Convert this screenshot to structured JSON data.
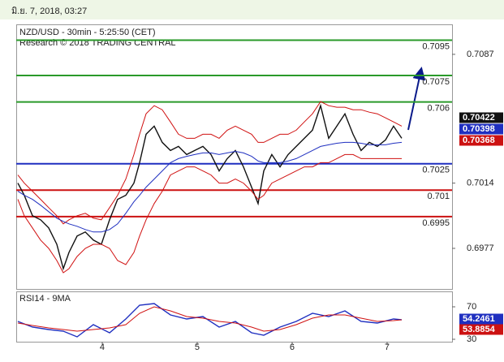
{
  "header": "มิ.ย. 7, 2018, 03:27",
  "chart_data": [
    {
      "type": "line",
      "title": "NZD/USD - 30min - 5:25:50 (CET)",
      "subtitle": "Research © 2018 TRADING CENTRAL",
      "x": [
        3.111,
        3.179,
        3.265,
        3.35,
        3.436,
        3.521,
        3.59,
        3.65,
        3.735,
        3.821,
        3.906,
        3.991,
        4.077,
        4.162,
        4.248,
        4.333,
        4.393,
        4.462,
        4.547,
        4.632,
        4.718,
        4.803,
        4.889,
        4.974,
        5.06,
        5.145,
        5.231,
        5.316,
        5.402,
        5.487,
        5.573,
        5.641,
        5.701,
        5.786,
        5.872,
        5.957,
        6.043,
        6.128,
        6.214,
        6.299,
        6.385,
        6.47,
        6.556,
        6.641,
        6.726,
        6.812,
        6.897,
        6.983,
        7.068,
        7.154
      ],
      "xlim": [
        3.094,
        7.684
      ],
      "ylim": [
        0.6954,
        0.7104
      ],
      "yticks": [
        0.6977,
        0.7014,
        0.7087
      ],
      "series": [
        {
          "color": "#111111",
          "values": [
            0.7014,
            0.70071,
            0.69955,
            0.69932,
            0.69886,
            0.69793,
            0.69655,
            0.69747,
            0.6984,
            0.69863,
            0.69817,
            0.69793,
            0.69932,
            0.70048,
            0.70071,
            0.7014,
            0.70256,
            0.70417,
            0.70463,
            0.70371,
            0.70325,
            0.70348,
            0.70302,
            0.70325,
            0.70348,
            0.70302,
            0.70209,
            0.70279,
            0.70325,
            0.70232,
            0.70117,
            0.70024,
            0.70209,
            0.70302,
            0.70232,
            0.70302,
            0.70348,
            0.70394,
            0.7044,
            0.70579,
            0.70394,
            0.70463,
            0.70533,
            0.70417,
            0.70325,
            0.70371,
            0.70348,
            0.70385,
            0.70463,
            0.70394
          ]
        },
        {
          "color": "#d01010",
          "values": [
            0.70186,
            0.7014,
            0.70094,
            0.70048,
            0.70001,
            0.69955,
            0.69909,
            0.69932,
            0.69955,
            0.69969,
            0.69941,
            0.69932,
            0.70001,
            0.70071,
            0.70163,
            0.70302,
            0.70417,
            0.70533,
            0.70579,
            0.70556,
            0.70487,
            0.70417,
            0.70394,
            0.70394,
            0.70417,
            0.70417,
            0.70394,
            0.7044,
            0.70463,
            0.7044,
            0.70417,
            0.70371,
            0.70371,
            0.70394,
            0.70417,
            0.70417,
            0.7044,
            0.70487,
            0.70533,
            0.70602,
            0.70579,
            0.7057,
            0.7057,
            0.70556,
            0.70556,
            0.70542,
            0.70533,
            0.7051,
            0.70487,
            0.70463
          ]
        },
        {
          "color": "#d01010",
          "values": [
            0.70048,
            0.69955,
            0.69886,
            0.69817,
            0.6977,
            0.69701,
            0.69632,
            0.69655,
            0.69724,
            0.6977,
            0.69793,
            0.69793,
            0.6977,
            0.69701,
            0.69678,
            0.69747,
            0.6984,
            0.69932,
            0.70024,
            0.70094,
            0.70186,
            0.70209,
            0.70232,
            0.70232,
            0.70209,
            0.70186,
            0.7014,
            0.7014,
            0.70163,
            0.7014,
            0.70094,
            0.70048,
            0.70071,
            0.7014,
            0.70163,
            0.70186,
            0.70209,
            0.70232,
            0.70232,
            0.70256,
            0.70256,
            0.70279,
            0.70302,
            0.70302,
            0.70279,
            0.70279,
            0.70279,
            0.70279,
            0.70279,
            0.70279
          ]
        },
        {
          "color": "#1f2fc0",
          "values": [
            0.70094,
            0.70071,
            0.70048,
            0.70015,
            0.69978,
            0.69941,
            0.69923,
            0.69909,
            0.69895,
            0.69877,
            0.69863,
            0.69863,
            0.69877,
            0.69909,
            0.69969,
            0.70034,
            0.70071,
            0.70117,
            0.70163,
            0.70209,
            0.70256,
            0.70279,
            0.70292,
            0.70302,
            0.70311,
            0.70311,
            0.70302,
            0.70311,
            0.7032,
            0.70311,
            0.70292,
            0.70265,
            0.70256,
            0.70256,
            0.70256,
            0.70265,
            0.70279,
            0.70302,
            0.70325,
            0.70348,
            0.70357,
            0.70366,
            0.70371,
            0.70371,
            0.70366,
            0.70357,
            0.70357,
            0.70357,
            0.70366,
            0.70371
          ]
        }
      ],
      "levels": [
        {
          "value": 0.7095,
          "color": "#2a9a2a"
        },
        {
          "value": 0.7075,
          "color": "#2a9a2a"
        },
        {
          "value": 0.706,
          "color": "#2a9a2a"
        },
        {
          "value": 0.7025,
          "color": "#1f2fc0"
        },
        {
          "value": 0.701,
          "color": "#cc1111"
        },
        {
          "value": 0.6995,
          "color": "#cc1111"
        }
      ],
      "price_tags": [
        {
          "value": 0.70422,
          "color": "#111111"
        },
        {
          "value": 0.70398,
          "color": "#1f2fc0"
        },
        {
          "value": 0.70368,
          "color": "#cc1111"
        }
      ]
    },
    {
      "type": "line",
      "title": "RSI14 - 9MA",
      "x": [
        3.111,
        3.265,
        3.436,
        3.59,
        3.735,
        3.906,
        4.077,
        4.248,
        4.393,
        4.547,
        4.718,
        4.889,
        5.06,
        5.231,
        5.402,
        5.573,
        5.701,
        5.872,
        6.043,
        6.214,
        6.385,
        6.556,
        6.726,
        6.897,
        7.068,
        7.154
      ],
      "xlim": [
        3.094,
        7.684
      ],
      "xticks": [
        4,
        5,
        6,
        7
      ],
      "ylim": [
        27,
        88
      ],
      "yticks": [
        30,
        70
      ],
      "series": [
        {
          "color": "#1f2fc0",
          "values": [
            52,
            45,
            42,
            40,
            33,
            48,
            38,
            55,
            72,
            74,
            60,
            55,
            58,
            45,
            52,
            38,
            35,
            45,
            52,
            62,
            58,
            65,
            52,
            50,
            55,
            54
          ]
        },
        {
          "color": "#d01010",
          "values": [
            50,
            47,
            44,
            42,
            40,
            42,
            44,
            48,
            62,
            70,
            65,
            58,
            56,
            52,
            50,
            45,
            40,
            42,
            48,
            56,
            60,
            60,
            56,
            52,
            53,
            54
          ]
        }
      ],
      "price_tags": [
        {
          "value": 54.2461,
          "color": "#1f2fc0"
        },
        {
          "value": 53.8854,
          "color": "#cc1111"
        }
      ]
    }
  ]
}
